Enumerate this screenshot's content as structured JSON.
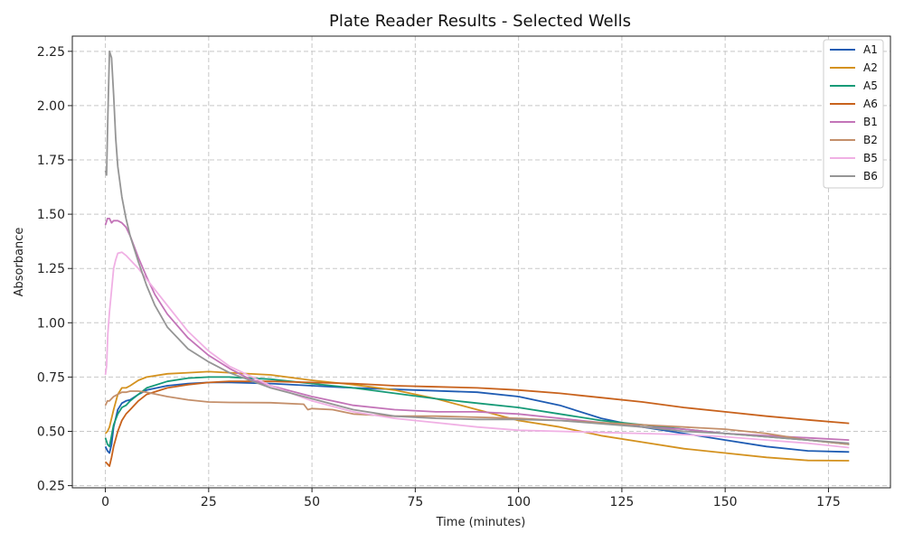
{
  "chart_data": {
    "type": "line",
    "title": "Plate Reader Results - Selected Wells",
    "xlabel": "Time (minutes)",
    "ylabel": "Absorbance",
    "xlim": [
      -8,
      190
    ],
    "ylim": [
      0.24,
      2.32
    ],
    "xticks": [
      0,
      25,
      50,
      75,
      100,
      125,
      150,
      175
    ],
    "yticks": [
      0.25,
      0.5,
      0.75,
      1.0,
      1.25,
      1.5,
      1.75,
      2.0,
      2.25
    ],
    "ytick_labels": [
      "0.25",
      "0.50",
      "0.75",
      "1.00",
      "1.25",
      "1.50",
      "1.75",
      "2.00",
      "2.25"
    ],
    "grid": true,
    "legend_position": "top-right",
    "series": [
      {
        "name": "A1",
        "color": "#1f5cb3",
        "x": [
          0,
          0.5,
          1,
          1.5,
          2,
          3,
          4,
          5,
          6,
          8,
          10,
          15,
          20,
          25,
          30,
          40,
          50,
          60,
          75,
          90,
          100,
          110,
          120,
          130,
          140,
          150,
          160,
          170,
          180
        ],
        "y": [
          0.43,
          0.41,
          0.4,
          0.44,
          0.52,
          0.6,
          0.63,
          0.64,
          0.645,
          0.67,
          0.69,
          0.71,
          0.72,
          0.725,
          0.725,
          0.72,
          0.71,
          0.7,
          0.69,
          0.68,
          0.66,
          0.62,
          0.56,
          0.52,
          0.49,
          0.46,
          0.43,
          0.41,
          0.405
        ]
      },
      {
        "name": "A2",
        "color": "#d4921f",
        "x": [
          0,
          0.5,
          1,
          2,
          3,
          4,
          5,
          6,
          8,
          10,
          15,
          20,
          25,
          30,
          40,
          50,
          60,
          70,
          80,
          90,
          100,
          110,
          120,
          130,
          140,
          150,
          160,
          170,
          180
        ],
        "y": [
          0.49,
          0.5,
          0.52,
          0.6,
          0.67,
          0.7,
          0.7,
          0.71,
          0.735,
          0.75,
          0.765,
          0.77,
          0.775,
          0.77,
          0.76,
          0.735,
          0.715,
          0.69,
          0.65,
          0.6,
          0.55,
          0.52,
          0.48,
          0.45,
          0.42,
          0.4,
          0.38,
          0.366,
          0.365
        ]
      },
      {
        "name": "A5",
        "color": "#169a77",
        "x": [
          0,
          0.5,
          1,
          1.5,
          2,
          3,
          4,
          5,
          6,
          8,
          10,
          15,
          20,
          25,
          30,
          40,
          50,
          60,
          70,
          80,
          90,
          100,
          110,
          120,
          130,
          140,
          150,
          160,
          170,
          180
        ],
        "y": [
          0.47,
          0.44,
          0.43,
          0.48,
          0.53,
          0.58,
          0.61,
          0.62,
          0.64,
          0.67,
          0.7,
          0.73,
          0.745,
          0.75,
          0.75,
          0.74,
          0.72,
          0.7,
          0.675,
          0.65,
          0.63,
          0.61,
          0.58,
          0.55,
          0.53,
          0.51,
          0.49,
          0.475,
          0.46,
          0.44
        ]
      },
      {
        "name": "A6",
        "color": "#c8621c",
        "x": [
          0,
          0.5,
          1,
          1.5,
          2,
          3,
          4,
          5,
          6,
          8,
          10,
          15,
          20,
          25,
          30,
          40,
          50,
          60,
          70,
          80,
          90,
          100,
          110,
          120,
          130,
          140,
          150,
          160,
          170,
          180
        ],
        "y": [
          0.36,
          0.35,
          0.34,
          0.38,
          0.43,
          0.5,
          0.55,
          0.58,
          0.6,
          0.64,
          0.67,
          0.7,
          0.715,
          0.725,
          0.73,
          0.73,
          0.725,
          0.72,
          0.71,
          0.705,
          0.7,
          0.69,
          0.675,
          0.655,
          0.635,
          0.61,
          0.59,
          0.57,
          0.553,
          0.537
        ]
      },
      {
        "name": "B1",
        "color": "#c374b8",
        "x": [
          0,
          0.5,
          1,
          1.5,
          2,
          3,
          4,
          5,
          6,
          8,
          10,
          12,
          15,
          20,
          25,
          30,
          35,
          40,
          50,
          60,
          70,
          80,
          90,
          100,
          110,
          120,
          130,
          140,
          150,
          160,
          170,
          180
        ],
        "y": [
          1.45,
          1.48,
          1.48,
          1.46,
          1.47,
          1.47,
          1.46,
          1.44,
          1.4,
          1.3,
          1.21,
          1.13,
          1.04,
          0.93,
          0.85,
          0.79,
          0.74,
          0.71,
          0.66,
          0.62,
          0.6,
          0.59,
          0.59,
          0.58,
          0.56,
          0.54,
          0.52,
          0.51,
          0.49,
          0.48,
          0.47,
          0.46
        ]
      },
      {
        "name": "B2",
        "color": "#c48f6a",
        "x": [
          0,
          0.5,
          1,
          2,
          3,
          4,
          5,
          6,
          8,
          10,
          15,
          20,
          25,
          30,
          40,
          48,
          49,
          50,
          55,
          60,
          70,
          80,
          90,
          100,
          110,
          120,
          130,
          140,
          150,
          160,
          170,
          180
        ],
        "y": [
          0.62,
          0.64,
          0.64,
          0.66,
          0.67,
          0.68,
          0.68,
          0.685,
          0.685,
          0.68,
          0.66,
          0.645,
          0.635,
          0.633,
          0.632,
          0.625,
          0.6,
          0.605,
          0.6,
          0.58,
          0.57,
          0.57,
          0.565,
          0.56,
          0.55,
          0.54,
          0.53,
          0.52,
          0.51,
          0.49,
          0.46,
          0.44
        ]
      },
      {
        "name": "B5",
        "color": "#f0b0e4",
        "x": [
          0,
          0.3,
          0.6,
          1,
          1.5,
          2,
          2.5,
          3,
          4,
          5,
          6,
          8,
          10,
          15,
          20,
          25,
          30,
          40,
          50,
          60,
          70,
          80,
          90,
          100,
          110,
          120,
          130,
          140,
          150,
          160,
          170,
          180
        ],
        "y": [
          0.76,
          0.8,
          0.95,
          1.05,
          1.15,
          1.25,
          1.29,
          1.32,
          1.325,
          1.31,
          1.29,
          1.25,
          1.2,
          1.08,
          0.96,
          0.87,
          0.8,
          0.71,
          0.64,
          0.59,
          0.56,
          0.54,
          0.52,
          0.505,
          0.5,
          0.495,
          0.49,
          0.485,
          0.475,
          0.46,
          0.445,
          0.425
        ]
      },
      {
        "name": "B6",
        "color": "#959595",
        "x": [
          0,
          0.3,
          0.6,
          1,
          1.5,
          2,
          2.5,
          3,
          4,
          5,
          6,
          8,
          10,
          12,
          15,
          20,
          25,
          30,
          40,
          50,
          60,
          70,
          80,
          90,
          100,
          110,
          120,
          130,
          140,
          150,
          160,
          170,
          180
        ],
        "y": [
          1.7,
          1.68,
          1.95,
          2.25,
          2.22,
          2.05,
          1.85,
          1.72,
          1.58,
          1.48,
          1.4,
          1.28,
          1.17,
          1.08,
          0.98,
          0.88,
          0.82,
          0.77,
          0.7,
          0.65,
          0.6,
          0.57,
          0.56,
          0.555,
          0.555,
          0.55,
          0.535,
          0.52,
          0.5,
          0.49,
          0.475,
          0.46,
          0.445
        ]
      }
    ]
  }
}
